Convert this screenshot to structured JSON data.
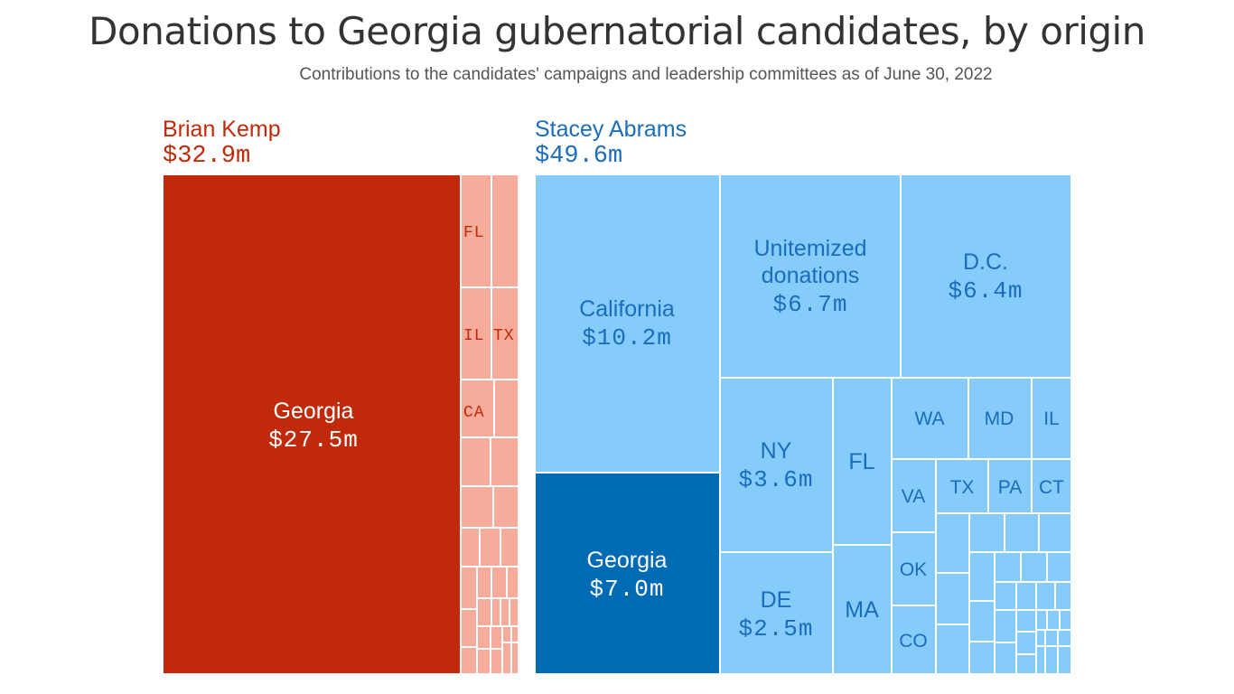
{
  "title": "Donations to Georgia gubernatorial candidates, by origin",
  "subtitle": "Contributions to the candidates' campaigns and leadership committees as of June 30, 2022",
  "candidates": {
    "kemp": {
      "name": "Brian Kemp",
      "total": "$32.9m"
    },
    "abrams": {
      "name": "Stacey Abrams",
      "total": "$49.6m"
    }
  },
  "colors": {
    "kemp_main": "#c02a0a",
    "kemp_light": "#f7ab9b",
    "kemp_text": "#c02a0a",
    "abrams_main": "#006bb5",
    "abrams_light": "#86ccfb",
    "abrams_text": "#1a6dbb",
    "label_light": "#ffffff",
    "divider": "#ffffff"
  },
  "chart_data": [
    {
      "type": "treemap",
      "candidate": "Brian Kemp",
      "total": 32.9,
      "unit": "$m",
      "nodes": [
        {
          "name": "Georgia",
          "value": 27.5,
          "value_label": "$27.5m",
          "highlight": true
        },
        {
          "name": "FL"
        },
        {
          "name": "IL"
        },
        {
          "name": "TX"
        },
        {
          "name": "CA"
        }
      ]
    },
    {
      "type": "treemap",
      "candidate": "Stacey Abrams",
      "total": 49.6,
      "unit": "$m",
      "nodes": [
        {
          "name": "California",
          "value": 10.2,
          "value_label": "$10.2m"
        },
        {
          "name": "Georgia",
          "value": 7.0,
          "value_label": "$7.0m",
          "highlight": true
        },
        {
          "name": "Unitemized donations",
          "value": 6.7,
          "value_label": "$6.7m"
        },
        {
          "name": "D.C.",
          "value": 6.4,
          "value_label": "$6.4m"
        },
        {
          "name": "NY",
          "value": 3.6,
          "value_label": "$3.6m"
        },
        {
          "name": "DE",
          "value": 2.5,
          "value_label": "$2.5m"
        },
        {
          "name": "FL"
        },
        {
          "name": "MA"
        },
        {
          "name": "WA"
        },
        {
          "name": "MD"
        },
        {
          "name": "IL"
        },
        {
          "name": "VA"
        },
        {
          "name": "TX"
        },
        {
          "name": "PA"
        },
        {
          "name": "CT"
        },
        {
          "name": "OK"
        },
        {
          "name": "CO"
        }
      ]
    }
  ]
}
